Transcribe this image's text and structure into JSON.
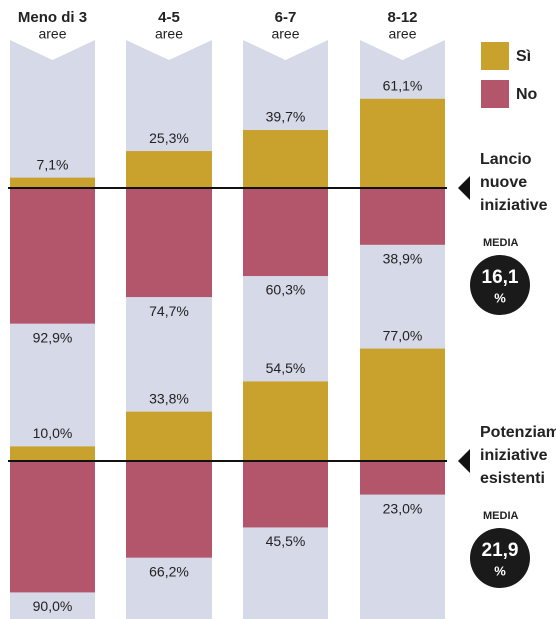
{
  "chart_data": {
    "type": "diverging-bar",
    "categories": [
      "Meno di 3",
      "4-5",
      "6-7",
      "8-12"
    ],
    "category_units": [
      "aree",
      "aree",
      "aree",
      "aree"
    ],
    "ylim": [
      0,
      100
    ],
    "series": [
      {
        "name": "Sì",
        "color": "#c8a22c",
        "values": [
          [
            7.1,
            25.3,
            39.7,
            61.1
          ],
          [
            10.0,
            33.8,
            54.5,
            77.0
          ]
        ],
        "value_labels": [
          [
            "7,1%",
            "25,3%",
            "39,7%",
            "61,1%"
          ],
          [
            "10,0%",
            "33,8%",
            "54,5%",
            "77,0%"
          ]
        ]
      },
      {
        "name": "No",
        "color": "#b4566b",
        "values": [
          [
            92.9,
            74.7,
            60.3,
            38.9
          ],
          [
            90.0,
            66.2,
            45.5,
            23.0
          ]
        ],
        "value_labels": [
          [
            "92,9%",
            "74,7%",
            "60,3%",
            "38,9%"
          ],
          [
            "90,0%",
            "66,2%",
            "45,5%",
            "23,0%"
          ]
        ]
      }
    ],
    "panels": [
      {
        "title": [
          "Lancio",
          "nuove",
          "iniziative"
        ],
        "media_label": "MEDIA",
        "media_value": "16,1",
        "media_unit": "%"
      },
      {
        "title": [
          "Potenziamento",
          "iniziative",
          "esistenti"
        ],
        "media_label": "MEDIA",
        "media_value": "21,9",
        "media_unit": "%"
      }
    ]
  }
}
